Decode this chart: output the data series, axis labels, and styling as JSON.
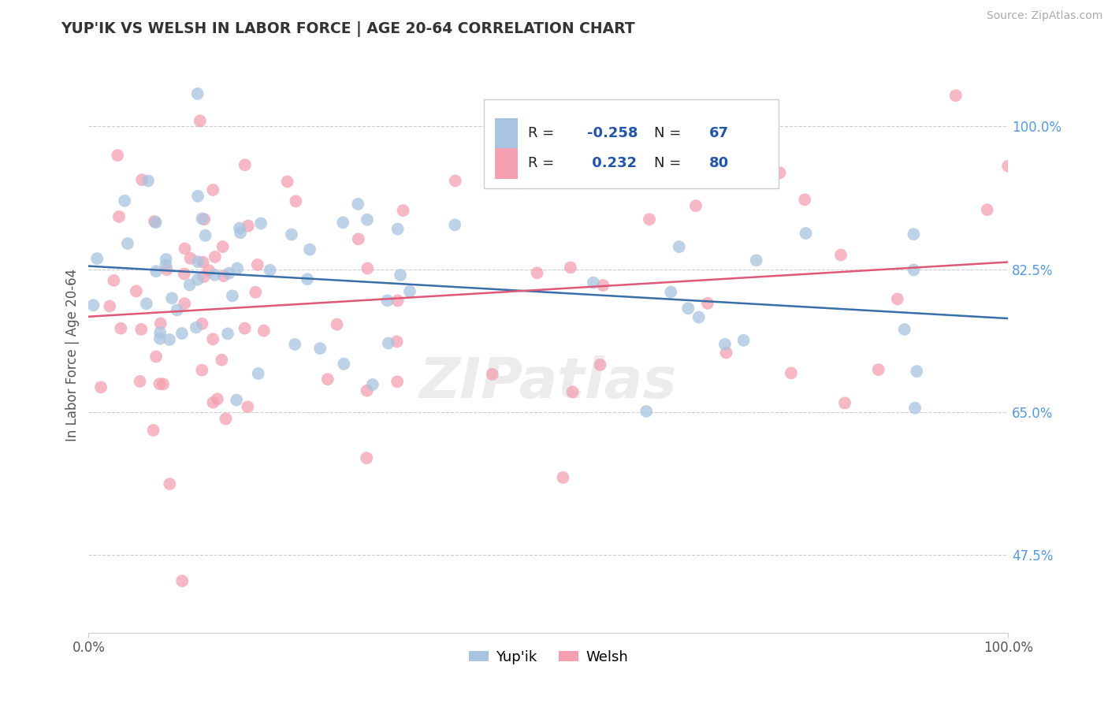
{
  "title": "YUP'IK VS WELSH IN LABOR FORCE | AGE 20-64 CORRELATION CHART",
  "source_text": "Source: ZipAtlas.com",
  "ylabel": "In Labor Force | Age 20-64",
  "xlim": [
    0.0,
    1.0
  ],
  "ylim": [
    0.38,
    1.06
  ],
  "yticks": [
    0.475,
    0.65,
    0.825,
    1.0
  ],
  "ytick_labels": [
    "47.5%",
    "65.0%",
    "82.5%",
    "100.0%"
  ],
  "xtick_labels": [
    "0.0%",
    "100.0%"
  ],
  "xticks": [
    0.0,
    1.0
  ],
  "r_yupik": -0.258,
  "n_yupik": 67,
  "r_welsh": 0.232,
  "n_welsh": 80,
  "color_yupik": "#a8c4e0",
  "color_welsh": "#f4a0b0",
  "line_color_yupik": "#3a6ea8",
  "line_color_welsh": "#e05878",
  "legend_label_yupik": "Yup'ik",
  "legend_label_welsh": "Welsh",
  "watermark": "ZIPatlas",
  "background_color": "#ffffff",
  "grid_color": "#cccccc",
  "title_color": "#333333",
  "tick_color": "#5599dd",
  "label_color": "#555555"
}
